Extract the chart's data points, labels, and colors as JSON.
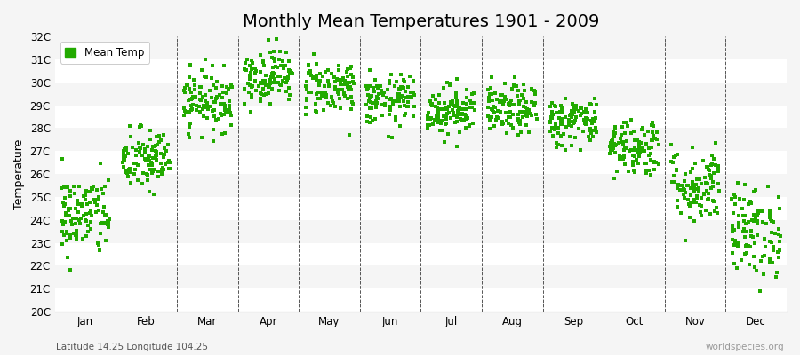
{
  "title": "Monthly Mean Temperatures 1901 - 2009",
  "ylabel": "Temperature",
  "xlabel_bottom": "Latitude 14.25 Longitude 104.25",
  "watermark": "worldspecies.org",
  "legend_label": "Mean Temp",
  "dot_color": "#22aa00",
  "background_color": "#f5f5f5",
  "alt_row_color": "#ffffff",
  "ylim": [
    20,
    32
  ],
  "ytick_labels": [
    "20C",
    "21C",
    "22C",
    "23C",
    "24C",
    "25C",
    "26C",
    "27C",
    "28C",
    "29C",
    "30C",
    "31C",
    "32C"
  ],
  "ytick_values": [
    20,
    21,
    22,
    23,
    24,
    25,
    26,
    27,
    28,
    29,
    30,
    31,
    32
  ],
  "months": [
    "Jan",
    "Feb",
    "Mar",
    "Apr",
    "May",
    "Jun",
    "Jul",
    "Aug",
    "Sep",
    "Oct",
    "Nov",
    "Dec"
  ],
  "month_centers": [
    1,
    2,
    3,
    4,
    5,
    6,
    7,
    8,
    9,
    10,
    11,
    12
  ],
  "mean_temps": [
    24.2,
    26.6,
    29.2,
    30.3,
    29.8,
    29.2,
    28.8,
    28.8,
    28.3,
    27.2,
    25.5,
    23.5
  ],
  "temp_spreads": [
    0.9,
    0.7,
    0.65,
    0.6,
    0.6,
    0.55,
    0.55,
    0.55,
    0.55,
    0.65,
    0.85,
    1.0
  ],
  "n_years": 109,
  "seed": 42,
  "dot_size": 5,
  "title_fontsize": 14,
  "axis_fontsize": 9,
  "tick_fontsize": 8.5
}
